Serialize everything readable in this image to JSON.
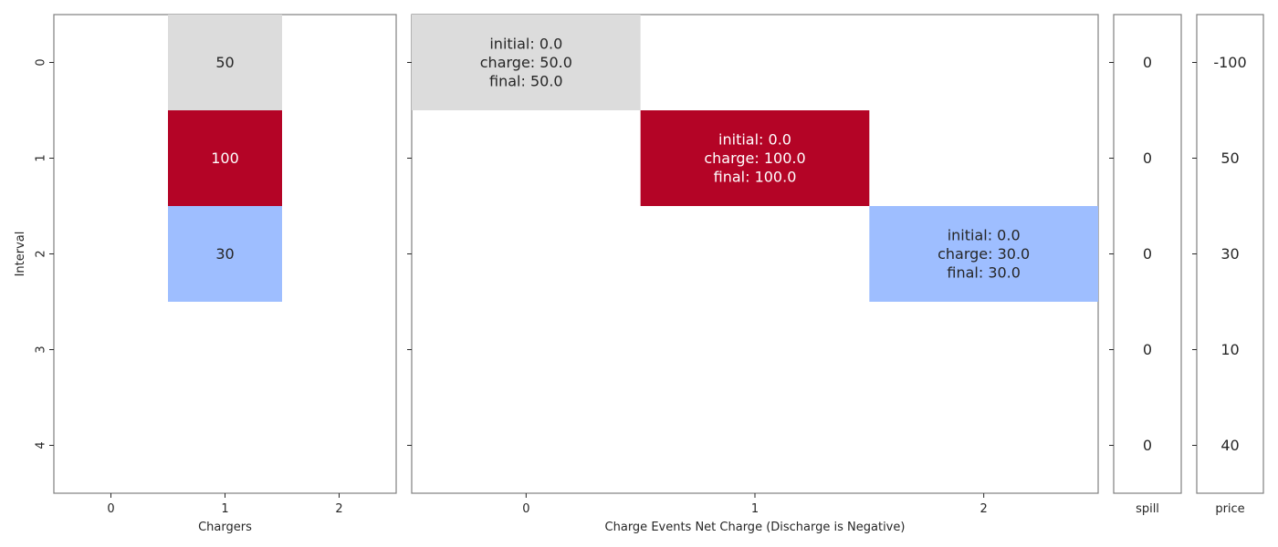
{
  "chart_data": [
    {
      "type": "heatmap",
      "name": "chargers",
      "xlabel": "Chargers",
      "ylabel": "Interval",
      "x_ticks": [
        "0",
        "1",
        "2"
      ],
      "y_ticks": [
        "0",
        "1",
        "2",
        "3",
        "4"
      ],
      "cells": [
        {
          "row": 0,
          "col": 1,
          "value": 50,
          "label": "50",
          "color": "#dcdcdc",
          "text_color": "#262626"
        },
        {
          "row": 1,
          "col": 1,
          "value": 100,
          "label": "100",
          "color": "#b40426",
          "text_color": "#ffffff"
        },
        {
          "row": 2,
          "col": 1,
          "value": 30,
          "label": "30",
          "color": "#9ebeff",
          "text_color": "#262626"
        }
      ]
    },
    {
      "type": "heatmap",
      "name": "charge-events",
      "xlabel": "Charge Events Net Charge (Discharge is Negative)",
      "ylabel": "",
      "x_ticks": [
        "0",
        "1",
        "2"
      ],
      "y_ticks": [
        "",
        "",
        "",
        "",
        ""
      ],
      "cells": [
        {
          "row": 0,
          "col": 0,
          "initial": 0.0,
          "charge": 50.0,
          "final": 50.0,
          "lines": [
            "initial: 0.0",
            "charge: 50.0",
            "final: 50.0"
          ],
          "color": "#dcdcdc",
          "text_color": "#262626"
        },
        {
          "row": 1,
          "col": 1,
          "initial": 0.0,
          "charge": 100.0,
          "final": 100.0,
          "lines": [
            "initial: 0.0",
            "charge: 100.0",
            "final: 100.0"
          ],
          "color": "#b40426",
          "text_color": "#ffffff"
        },
        {
          "row": 2,
          "col": 2,
          "initial": 0.0,
          "charge": 30.0,
          "final": 30.0,
          "lines": [
            "initial: 0.0",
            "charge: 30.0",
            "final: 30.0"
          ],
          "color": "#9ebeff",
          "text_color": "#262626"
        }
      ]
    },
    {
      "type": "table",
      "name": "spill",
      "xlabel": "spill",
      "values": [
        0,
        0,
        0,
        0,
        0
      ],
      "labels": [
        "0",
        "0",
        "0",
        "0",
        "0"
      ]
    },
    {
      "type": "table",
      "name": "price",
      "xlabel": "price",
      "values": [
        -100,
        50,
        30,
        10,
        40
      ],
      "labels": [
        "-100",
        "50",
        "30",
        "10",
        "40"
      ]
    }
  ]
}
